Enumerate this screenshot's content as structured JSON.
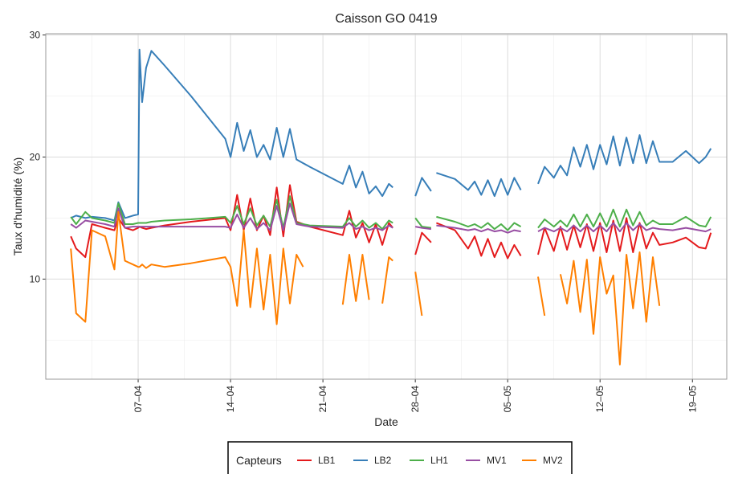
{
  "chart_data": {
    "type": "line",
    "title": "Caisson GO 0419",
    "x_label": "Date",
    "y_label": "Taux d'humidité (%)",
    "legend_title": "Capteurs",
    "legend": "bottom",
    "grid": true,
    "xlim": [
      0,
      51.6
    ],
    "ylim": [
      1.8,
      30.1
    ],
    "xticks": [
      {
        "value": 7,
        "label": "07–04"
      },
      {
        "value": 14,
        "label": "14–04"
      },
      {
        "value": 21,
        "label": "21–04"
      },
      {
        "value": 28,
        "label": "28–04"
      },
      {
        "value": 35,
        "label": "05–05"
      },
      {
        "value": 42,
        "label": "12–05"
      },
      {
        "value": 49,
        "label": "19–05"
      }
    ],
    "xminor": [
      3.5,
      10.5,
      17.5,
      24.5,
      31.5,
      38.5,
      45.5
    ],
    "yticks": [
      10,
      20,
      30
    ],
    "yminor": [
      5,
      15,
      25
    ],
    "x": [
      1.9,
      2.3,
      3.0,
      3.5,
      4.5,
      5.2,
      5.5,
      6.0,
      6.6,
      7.0,
      7.1,
      7.3,
      7.6,
      8.0,
      9.0,
      11.0,
      13.6,
      14.0,
      14.5,
      15.0,
      15.5,
      16.0,
      16.5,
      17.0,
      17.5,
      18.0,
      18.5,
      19.0,
      19.5,
      20.0,
      22.5,
      23.0,
      23.5,
      24.0,
      24.5,
      25.0,
      25.5,
      26.0,
      26.3,
      27.0,
      28.0,
      28.5,
      29.2,
      29.4,
      29.6,
      31.0,
      32.0,
      32.5,
      33.0,
      33.5,
      34.0,
      34.5,
      35.0,
      35.5,
      36.0,
      36.6,
      37.3,
      37.8,
      38.5,
      39.0,
      39.5,
      40.0,
      40.5,
      41.0,
      41.5,
      42.0,
      42.5,
      43.0,
      43.5,
      44.0,
      44.5,
      45.0,
      45.5,
      46.0,
      46.5,
      47.5,
      48.5,
      49.5,
      50.0,
      50.4
    ],
    "series": [
      {
        "name": "LB1",
        "color": "#e41a1c",
        "values": [
          13.5,
          12.5,
          11.8,
          14.5,
          14.2,
          14.0,
          15.0,
          14.2,
          14.0,
          14.2,
          14.3,
          14.2,
          14.1,
          14.2,
          14.4,
          14.7,
          15.0,
          14.0,
          16.9,
          14.0,
          16.6,
          14.0,
          15.2,
          13.6,
          17.5,
          13.5,
          17.7,
          14.7,
          14.5,
          14.3,
          13.6,
          15.6,
          13.4,
          14.6,
          13.0,
          14.5,
          12.8,
          14.6,
          14.2,
          null,
          12.0,
          13.8,
          13.0,
          null,
          14.6,
          14.0,
          12.5,
          13.5,
          11.9,
          13.3,
          11.8,
          13.0,
          11.7,
          12.8,
          11.9,
          null,
          12.0,
          14.2,
          12.3,
          14.3,
          12.4,
          14.4,
          12.6,
          14.5,
          12.3,
          14.6,
          12.2,
          14.8,
          12.3,
          15.0,
          12.2,
          14.6,
          12.5,
          13.8,
          12.8,
          13.0,
          13.4,
          12.6,
          12.5,
          13.8
        ]
      },
      {
        "name": "LB2",
        "color": "#377eb8",
        "values": [
          15.0,
          15.2,
          15.0,
          15.1,
          15.0,
          14.8,
          16.3,
          15.0,
          15.2,
          15.3,
          28.8,
          24.5,
          27.3,
          28.7,
          27.5,
          25.0,
          21.5,
          20.0,
          22.8,
          20.5,
          22.2,
          20.0,
          21.0,
          19.8,
          22.4,
          20.0,
          22.3,
          19.8,
          19.5,
          19.2,
          17.8,
          19.3,
          17.5,
          18.8,
          17.0,
          17.6,
          16.8,
          17.8,
          17.5,
          null,
          16.8,
          18.3,
          17.2,
          null,
          18.7,
          18.2,
          17.3,
          18.0,
          16.9,
          18.1,
          16.8,
          18.2,
          16.9,
          18.3,
          17.3,
          null,
          17.8,
          19.2,
          18.3,
          19.3,
          18.5,
          20.8,
          19.2,
          21.0,
          19.0,
          21.0,
          19.4,
          21.7,
          19.3,
          21.6,
          19.5,
          21.8,
          19.5,
          21.3,
          19.6,
          19.6,
          20.5,
          19.5,
          20.0,
          20.7
        ]
      },
      {
        "name": "LH1",
        "color": "#4daf4a",
        "values": [
          15.1,
          14.5,
          15.5,
          15.0,
          14.8,
          14.6,
          16.2,
          14.5,
          14.5,
          14.6,
          14.6,
          14.6,
          14.6,
          14.7,
          14.8,
          14.9,
          15.1,
          14.6,
          16.0,
          14.5,
          15.8,
          14.4,
          15.2,
          14.3,
          16.5,
          14.2,
          16.8,
          14.6,
          14.5,
          14.4,
          14.3,
          15.0,
          14.3,
          14.8,
          14.2,
          14.6,
          14.1,
          14.8,
          14.6,
          null,
          15.0,
          14.3,
          14.2,
          null,
          15.1,
          14.7,
          14.3,
          14.5,
          14.2,
          14.6,
          14.1,
          14.5,
          14.0,
          14.6,
          14.3,
          null,
          14.2,
          14.9,
          14.3,
          14.8,
          14.3,
          15.3,
          14.3,
          15.3,
          14.3,
          15.4,
          14.3,
          15.7,
          14.3,
          15.7,
          14.4,
          15.5,
          14.4,
          14.8,
          14.5,
          14.5,
          15.1,
          14.4,
          14.3,
          15.1
        ]
      },
      {
        "name": "MV1",
        "color": "#984ea3",
        "values": [
          14.5,
          14.2,
          14.8,
          14.7,
          14.5,
          14.3,
          15.8,
          14.2,
          14.3,
          14.3,
          14.3,
          14.3,
          14.3,
          14.3,
          14.3,
          14.3,
          14.3,
          14.2,
          15.3,
          14.2,
          15.0,
          14.1,
          14.6,
          14.0,
          16.0,
          14.0,
          16.2,
          14.5,
          14.4,
          14.3,
          14.2,
          14.6,
          14.1,
          14.3,
          14.0,
          14.2,
          14.0,
          14.4,
          14.2,
          null,
          14.3,
          14.2,
          14.1,
          null,
          14.4,
          14.2,
          14.0,
          14.1,
          13.9,
          14.1,
          13.9,
          14.0,
          13.8,
          14.0,
          13.9,
          null,
          13.9,
          14.2,
          13.9,
          14.2,
          13.9,
          14.4,
          13.9,
          14.4,
          13.9,
          14.4,
          13.9,
          14.6,
          13.9,
          14.6,
          14.0,
          14.5,
          14.0,
          14.2,
          14.1,
          14.0,
          14.2,
          14.0,
          13.9,
          14.1
        ]
      },
      {
        "name": "MV2",
        "color": "#ff7f00",
        "values": [
          12.5,
          7.2,
          6.5,
          14.0,
          13.5,
          10.8,
          15.5,
          11.5,
          11.2,
          11.0,
          11.0,
          11.2,
          10.9,
          11.2,
          11.0,
          11.3,
          11.8,
          11.0,
          7.8,
          14.0,
          7.7,
          12.5,
          7.5,
          12.0,
          6.3,
          12.5,
          8.0,
          12.0,
          11.0,
          null,
          7.9,
          12.0,
          8.2,
          12.0,
          8.3,
          null,
          8.0,
          11.8,
          11.5,
          null,
          10.6,
          7.0,
          null,
          null,
          null,
          null,
          null,
          null,
          null,
          null,
          null,
          null,
          null,
          null,
          null,
          null,
          10.2,
          7.0,
          null,
          10.4,
          8.0,
          11.5,
          7.3,
          11.6,
          5.5,
          11.8,
          8.8,
          10.3,
          3.0,
          12.0,
          7.6,
          12.2,
          6.5,
          11.8,
          7.8,
          null,
          null,
          null,
          null,
          null
        ]
      }
    ]
  }
}
